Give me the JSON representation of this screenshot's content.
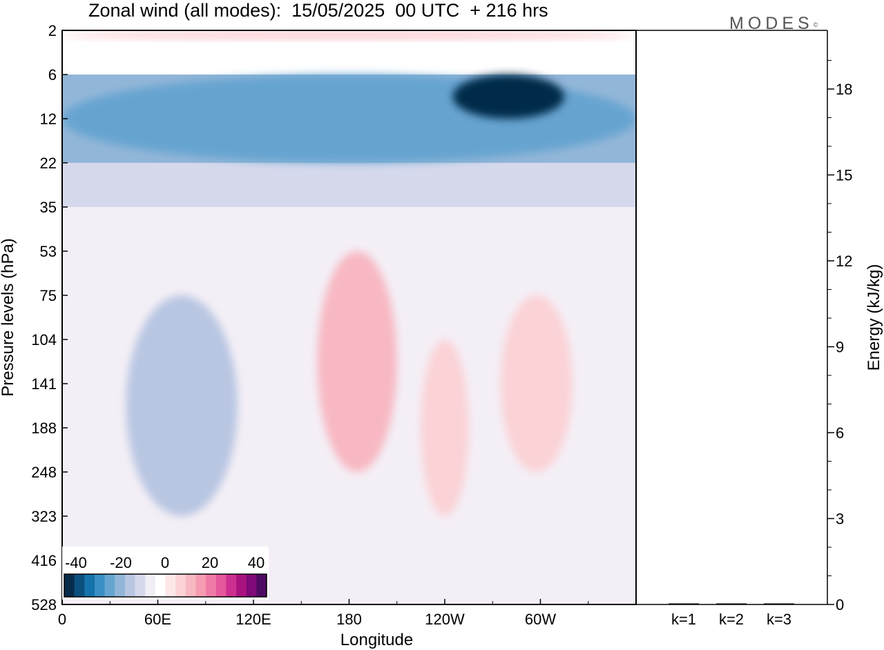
{
  "title": "Zonal wind (all modes):  15/05/2025  00 UTC  + 216 hrs",
  "logo": "MODES",
  "logo_mark": "©",
  "chart_data": [
    {
      "type": "heatmap",
      "title": "Zonal wind (all modes):  15/05/2025  00 UTC  + 216 hrs",
      "xlabel": "Longitude",
      "ylabel": "Pressure levels (hPa)",
      "x_ticks": [
        "0",
        "60E",
        "120E",
        "180",
        "120W",
        "60W"
      ],
      "x_tick_values": [
        0,
        60,
        120,
        180,
        240,
        300
      ],
      "xlim": [
        0,
        360
      ],
      "y_ticks": [
        "2",
        "6",
        "12",
        "22",
        "35",
        "53",
        "75",
        "104",
        "141",
        "188",
        "248",
        "323",
        "416",
        "528"
      ],
      "y_scale": "pressure-levels (top = 2 hPa)",
      "colorbar": {
        "tick_labels": [
          "-40",
          "-20",
          "0",
          "20",
          "40"
        ],
        "tick_values": [
          -40,
          -20,
          0,
          20,
          40
        ],
        "colors": [
          "#062b4a",
          "#0b4f7e",
          "#1572aa",
          "#3b8fc4",
          "#66a4d0",
          "#92b6d8",
          "#b8c6e2",
          "#d6d9ec",
          "#f1eef6",
          "#ffffff",
          "#fde7e7",
          "#fbd2d6",
          "#f8b8c2",
          "#f59bb2",
          "#f07aa6",
          "#e4579b",
          "#cc2f8f",
          "#a9137f",
          "#7e0a78",
          "#4d0a63"
        ]
      },
      "field_features": [
        {
          "label": "stratospheric easterly jet",
          "lon_range": [
            0,
            360
          ],
          "level_range": [
            "6",
            "22"
          ],
          "value": -22
        },
        {
          "label": "easterly core",
          "lon_range": [
            245,
            315
          ],
          "level_range": [
            "6",
            "12"
          ],
          "value": -38
        },
        {
          "label": "upper westerlies",
          "lon_range": [
            0,
            360
          ],
          "level_range": [
            "2",
            "3"
          ],
          "value": 8
        },
        {
          "label": "easterly tropospheric cell",
          "lon_range": [
            40,
            110
          ],
          "level_range": [
            "75",
            "323"
          ],
          "value": -14
        },
        {
          "label": "westerly cell",
          "lon_range": [
            160,
            210
          ],
          "level_range": [
            "53",
            "248"
          ],
          "value": 15
        },
        {
          "label": "westerly cell",
          "lon_range": [
            225,
            255
          ],
          "level_range": [
            "104",
            "323"
          ],
          "value": 8
        },
        {
          "label": "westerly cell",
          "lon_range": [
            275,
            320
          ],
          "level_range": [
            "75",
            "248"
          ],
          "value": 10
        }
      ]
    },
    {
      "type": "bar",
      "ylabel": "Energy (kJ/kg)",
      "categories": [
        "k=1",
        "k=2",
        "k=3"
      ],
      "values": [
        0.02,
        0.01,
        0.01
      ],
      "ylim": [
        0,
        20
      ],
      "y_ticks": [
        "0",
        "3",
        "6",
        "9",
        "12",
        "15",
        "18"
      ],
      "y_tick_values": [
        0,
        3,
        6,
        9,
        12,
        15,
        18
      ],
      "y_minor_step": 1
    }
  ]
}
